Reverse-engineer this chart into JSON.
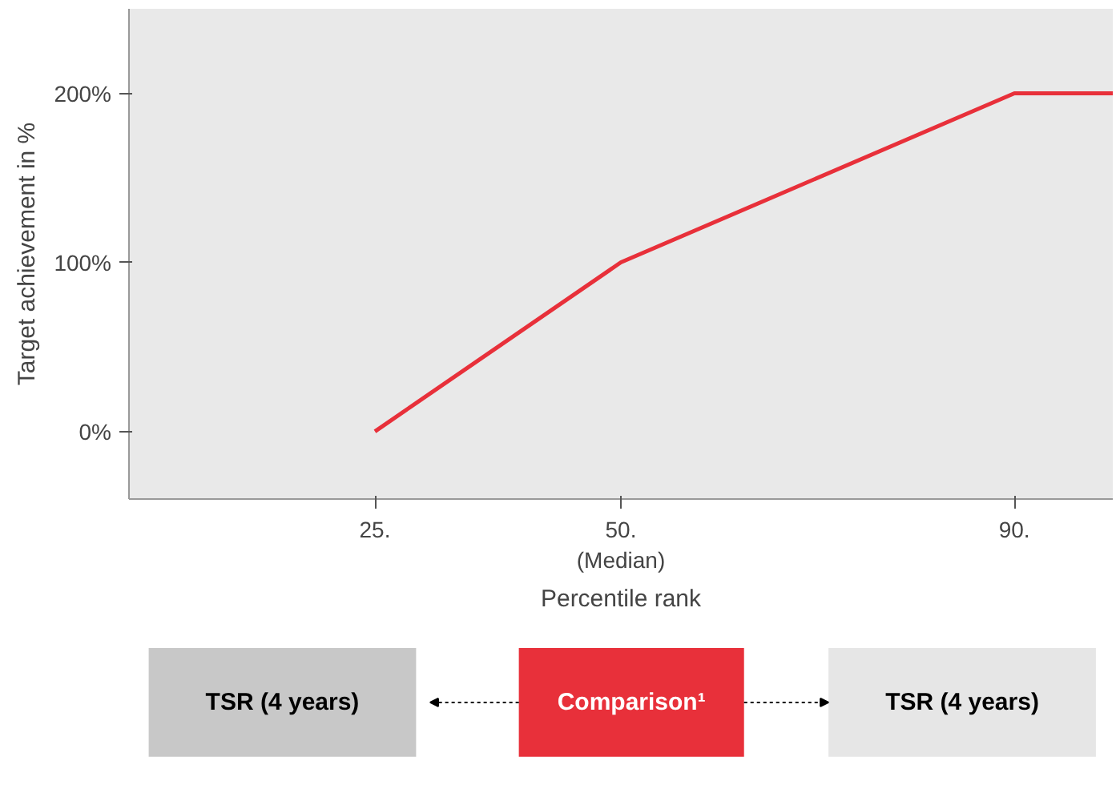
{
  "chart_data": {
    "type": "line",
    "xlabel": "Percentile rank",
    "ylabel": "Target achievement in %",
    "x": [
      25,
      50,
      90,
      100
    ],
    "series": [
      {
        "color": "#e8303a",
        "values": [
          0,
          100,
          200,
          200
        ]
      }
    ],
    "xlim": [
      0,
      100
    ],
    "ylim": [
      -40,
      250
    ],
    "xticks": [
      {
        "value": 25,
        "label": "25."
      },
      {
        "value": 50,
        "label": "50.\n(Median)"
      },
      {
        "value": 90,
        "label": "90."
      }
    ],
    "yticks": [
      {
        "value": 0,
        "label": "0%"
      },
      {
        "value": 100,
        "label": "100%"
      },
      {
        "value": 200,
        "label": "200%"
      }
    ],
    "marker": "none",
    "line_style": "solid",
    "annotations": [
      "TSR (4 years)",
      "Comparison¹",
      "TSR (4 years)"
    ]
  }
}
